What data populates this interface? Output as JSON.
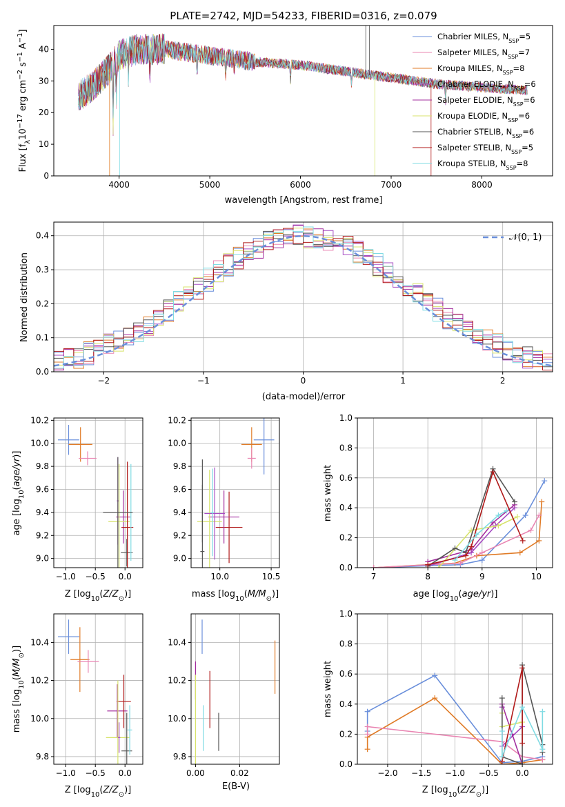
{
  "figure_title": "PLATE=2742, MJD=54233, FIBERID=0316, z=0.079",
  "colors": {
    "Chabrier MILES": "#6a8fdb",
    "Salpeter MILES": "#e985b2",
    "Kroupa MILES": "#e07b27",
    "Chabrier ELODIE": "#a64cc3",
    "Salpeter ELODIE": "#a32d9e",
    "Kroupa ELODIE": "#d7e36b",
    "Chabrier STELIB": "#555555",
    "Salpeter STELIB": "#b11a1a",
    "Kroupa STELIB": "#7fdbe3"
  },
  "chart_data": [
    {
      "id": "spectrum",
      "type": "line",
      "xlabel": "wavelength [Angstrom, rest frame]",
      "ylabel": "Flux [f_λ10^-17 erg cm^-2 s^-1 A^-1]",
      "xlim": [
        3280,
        8780
      ],
      "ylim": [
        0,
        47.5
      ],
      "xticks": [
        4000,
        5000,
        6000,
        7000,
        8000
      ],
      "yticks": [
        0,
        10,
        20,
        30,
        40
      ],
      "grid": false,
      "legend_position": "top-right",
      "legend": [
        {
          "model": "Chabrier MILES",
          "n": 5
        },
        {
          "model": "Salpeter MILES",
          "n": 7
        },
        {
          "model": "Kroupa MILES",
          "n": 8
        },
        {
          "model": "Chabrier ELODIE",
          "n": 6
        },
        {
          "model": "Salpeter ELODIE",
          "n": 6
        },
        {
          "model": "Kroupa ELODIE",
          "n": 6
        },
        {
          "model": "Chabrier STELIB",
          "n": 6
        },
        {
          "model": "Salpeter STELIB",
          "n": 5
        },
        {
          "model": "Kroupa STELIB",
          "n": 8
        }
      ],
      "x_range": [
        3550,
        8500
      ],
      "continuum": [
        [
          3550,
          25
        ],
        [
          3700,
          28
        ],
        [
          3900,
          34
        ],
        [
          4000,
          38
        ],
        [
          4200,
          40
        ],
        [
          4500,
          40
        ],
        [
          5000,
          38
        ],
        [
          5500,
          36
        ],
        [
          6000,
          35
        ],
        [
          6500,
          33
        ],
        [
          7000,
          31
        ],
        [
          7500,
          29
        ],
        [
          8000,
          28
        ],
        [
          8500,
          27
        ]
      ],
      "dips": [
        [
          3934,
          18
        ],
        [
          3969,
          12
        ],
        [
          4102,
          6
        ],
        [
          4340,
          8
        ],
        [
          4861,
          6
        ],
        [
          5175,
          5
        ],
        [
          5270,
          3
        ],
        [
          5890,
          5
        ],
        [
          6563,
          4
        ],
        [
          7600,
          5
        ]
      ],
      "spikes": [
        {
          "model": "Chabrier STELIB",
          "x": 6720,
          "y": 47.5
        },
        {
          "model": "Chabrier STELIB",
          "x": 6760,
          "y": 47.5
        },
        {
          "model": "Kroupa ELODIE",
          "x": 6820,
          "y": 0
        },
        {
          "model": "Kroupa MILES",
          "x": 3895,
          "y": 0
        },
        {
          "model": "Kroupa STELIB",
          "x": 4005,
          "y": 0
        },
        {
          "model": "Salpeter STELIB",
          "x": 7440,
          "y": 0
        }
      ]
    },
    {
      "id": "residuals",
      "type": "line",
      "xlabel": "(data-model)/error",
      "ylabel": "Normed distribution",
      "xlim": [
        -2.5,
        2.5
      ],
      "ylim": [
        0,
        0.44
      ],
      "xticks": [
        -2,
        -1,
        0,
        1,
        2
      ],
      "yticks": [
        0.0,
        0.1,
        0.2,
        0.3,
        0.4
      ],
      "grid": true,
      "legend_position": "top-right",
      "legend_label": "𝒩(0, 1)",
      "gaussian": {
        "mean": 0,
        "sigma": 1
      },
      "bins": 50
    },
    {
      "id": "z-vs-age",
      "type": "scatter",
      "xlabel": "Z [log10(Z/Z⊙)]",
      "ylabel": "age  [log10(age/yr)]",
      "xlim": [
        -1.2,
        0.3
      ],
      "ylim": [
        8.92,
        10.22
      ],
      "xticks": [
        -1.0,
        -0.5,
        0.0
      ],
      "yticks": [
        9.0,
        9.2,
        9.4,
        9.6,
        9.8,
        10.0,
        10.2
      ],
      "grid": true,
      "points": [
        {
          "model": "Chabrier MILES",
          "x": -0.95,
          "y": 10.03,
          "xerr": 0.18,
          "yerr": 0.13
        },
        {
          "model": "Kroupa MILES",
          "x": -0.75,
          "y": 9.99,
          "xerr": 0.2,
          "yerr": 0.15
        },
        {
          "model": "Salpeter MILES",
          "x": -0.63,
          "y": 9.87,
          "xerr": 0.15,
          "yerr": 0.06
        },
        {
          "model": "Chabrier ELODIE",
          "x": -0.12,
          "y": 9.5,
          "xerr": 0.02,
          "yerr": 0.38
        },
        {
          "model": "Salpeter ELODIE",
          "x": -0.03,
          "y": 9.36,
          "xerr": 0.12,
          "yerr": 0.23
        },
        {
          "model": "Kroupa ELODIE",
          "x": -0.1,
          "y": 9.32,
          "xerr": 0.18,
          "yerr": 0.5
        },
        {
          "model": "Chabrier STELIB",
          "x": 0.03,
          "y": 9.05,
          "xerr": 0.1,
          "yerr": 0.12
        },
        {
          "model": "Salpeter STELIB",
          "x": 0.04,
          "y": 9.27,
          "xerr": 0.1,
          "yerr": 0.57
        },
        {
          "model": "Kroupa STELIB",
          "x": 0.1,
          "y": 9.4,
          "xerr": 0.02,
          "yerr": 0.42
        },
        {
          "model": "Chabrier STELIB",
          "x": -0.12,
          "y": 9.4,
          "xerr": 0.25,
          "yerr": 0.48
        }
      ]
    },
    {
      "id": "mass-vs-age",
      "type": "scatter",
      "xlabel": "mass [log10(M/M⊙)]",
      "ylabel": "",
      "xlim": [
        9.72,
        10.58
      ],
      "ylim": [
        8.92,
        10.22
      ],
      "xticks": [
        10.0,
        10.5
      ],
      "yticks": [
        9.0,
        9.2,
        9.4,
        9.6,
        9.8,
        10.0,
        10.2
      ],
      "grid": true,
      "points": [
        {
          "model": "Chabrier MILES",
          "x": 10.43,
          "y": 10.03,
          "xerr": 0.1,
          "yerr": 0.3
        },
        {
          "model": "Kroupa MILES",
          "x": 10.31,
          "y": 9.99,
          "xerr": 0.1,
          "yerr": 0.15
        },
        {
          "model": "Salpeter MILES",
          "x": 10.31,
          "y": 9.87,
          "xerr": 0.04,
          "yerr": 0.09
        },
        {
          "model": "Salpeter STELIB",
          "x": 10.09,
          "y": 9.27,
          "xerr": 0.13,
          "yerr": 0.31
        },
        {
          "model": "Salpeter ELODIE",
          "x": 10.04,
          "y": 9.36,
          "xerr": 0.15,
          "yerr": 0.23
        },
        {
          "model": "Kroupa ELODIE",
          "x": 9.9,
          "y": 9.32,
          "xerr": 0.12,
          "yerr": 0.45
        },
        {
          "model": "Chabrier ELODIE",
          "x": 9.95,
          "y": 9.39,
          "xerr": 0.1,
          "yerr": 0.4
        },
        {
          "model": "Kroupa STELIB",
          "x": 9.93,
          "y": 9.4,
          "xerr": 0.02,
          "yerr": 0.38
        },
        {
          "model": "Chabrier STELIB",
          "x": 9.83,
          "y": 9.06,
          "xerr": 0.02,
          "yerr": 0.8
        },
        {
          "model": "Chabrier STELIB",
          "x": 9.83,
          "y": 9.39,
          "xerr": 0.0,
          "yerr": 0.25
        }
      ]
    },
    {
      "id": "age-vs-mass-weight",
      "type": "line",
      "xlabel": "age  [log10(age/yr)]",
      "ylabel": "mass weight",
      "xlim": [
        6.7,
        10.3
      ],
      "ylim": [
        0.0,
        1.0
      ],
      "xticks": [
        7,
        8,
        9,
        10
      ],
      "yticks": [
        0.0,
        0.2,
        0.4,
        0.6,
        0.8,
        1.0
      ],
      "grid": true,
      "series": [
        {
          "model": "Chabrier MILES",
          "x": [
            7.0,
            8.6,
            9.0,
            9.8,
            10.15
          ],
          "y": [
            0.0,
            0.02,
            0.05,
            0.35,
            0.58
          ]
        },
        {
          "model": "Kroupa MILES",
          "x": [
            7.0,
            8.5,
            8.9,
            9.7,
            10.05,
            10.1
          ],
          "y": [
            0.0,
            0.03,
            0.08,
            0.1,
            0.18,
            0.44
          ]
        },
        {
          "model": "Salpeter MILES",
          "x": [
            7.0,
            8.6,
            9.0,
            9.9,
            10.05
          ],
          "y": [
            0.0,
            0.03,
            0.1,
            0.25,
            0.35
          ]
        },
        {
          "model": "Chabrier ELODIE",
          "x": [
            8.0,
            8.8,
            9.25,
            9.6
          ],
          "y": [
            0.01,
            0.1,
            0.28,
            0.4
          ]
        },
        {
          "model": "Salpeter ELODIE",
          "x": [
            8.0,
            8.8,
            9.2,
            9.6
          ],
          "y": [
            0.04,
            0.12,
            0.3,
            0.42
          ]
        },
        {
          "model": "Kroupa ELODIE",
          "x": [
            8.2,
            8.8,
            9.3,
            9.65
          ],
          "y": [
            0.0,
            0.25,
            0.28,
            0.34
          ]
        },
        {
          "model": "Chabrier STELIB",
          "x": [
            8.0,
            8.5,
            8.7,
            9.2,
            9.6
          ],
          "y": [
            0.01,
            0.13,
            0.1,
            0.66,
            0.44
          ]
        },
        {
          "model": "Salpeter STELIB",
          "x": [
            8.0,
            8.7,
            8.8,
            9.2,
            9.75
          ],
          "y": [
            0.02,
            0.08,
            0.14,
            0.64,
            0.18
          ]
        },
        {
          "model": "Kroupa STELIB",
          "x": [
            8.5,
            8.9,
            9.3,
            9.45
          ],
          "y": [
            0.05,
            0.22,
            0.35,
            0.38
          ]
        }
      ]
    },
    {
      "id": "z-vs-mass",
      "type": "scatter",
      "xlabel": "Z [log10(Z/Z⊙)]",
      "ylabel": "mass [log10(M/M⊙)]",
      "xlim": [
        -1.2,
        0.3
      ],
      "ylim": [
        9.76,
        10.55
      ],
      "xticks": [
        -1.0,
        -0.5,
        0.0
      ],
      "yticks": [
        9.8,
        10.0,
        10.2,
        10.4
      ],
      "grid": true,
      "points": [
        {
          "model": "Chabrier MILES",
          "x": -0.95,
          "y": 10.43,
          "xerr": 0.18,
          "yerr": 0.09
        },
        {
          "model": "Kroupa MILES",
          "x": -0.76,
          "y": 10.31,
          "xerr": 0.16,
          "yerr": 0.17
        },
        {
          "model": "Salpeter MILES",
          "x": -0.62,
          "y": 10.3,
          "xerr": 0.18,
          "yerr": 0.06
        },
        {
          "model": "Salpeter ELODIE",
          "x": -0.13,
          "y": 10.04,
          "xerr": 0.17,
          "yerr": 0.14
        },
        {
          "model": "Salpeter STELIB",
          "x": -0.02,
          "y": 10.09,
          "xerr": 0.12,
          "yerr": 0.14
        },
        {
          "model": "Kroupa ELODIE",
          "x": -0.12,
          "y": 9.9,
          "xerr": 0.2,
          "yerr": 0.3
        },
        {
          "model": "Chabrier ELODIE",
          "x": -0.1,
          "y": 9.9,
          "xerr": 0.02,
          "yerr": 0.08
        },
        {
          "model": "Chabrier STELIB",
          "x": 0.03,
          "y": 9.83,
          "xerr": 0.09,
          "yerr": 0.2
        },
        {
          "model": "Kroupa STELIB",
          "x": 0.08,
          "y": 9.94,
          "xerr": 0.04,
          "yerr": 0.13
        }
      ]
    },
    {
      "id": "ebv-vs-mass",
      "type": "scatter",
      "xlabel": "E(B-V)",
      "ylabel": "",
      "xlim": [
        -0.002,
        0.038
      ],
      "ylim": [
        9.76,
        10.55
      ],
      "xticks": [
        0.0,
        0.02
      ],
      "yticks": [
        9.8,
        10.0,
        10.2,
        10.4
      ],
      "grid": true,
      "points": [
        {
          "model": "Chabrier MILES",
          "x": 0.003,
          "y": 10.43,
          "yerr": 0.09
        },
        {
          "model": "Salpeter ELODIE",
          "x": 0.0,
          "y": 10.2,
          "yerr": 0.1
        },
        {
          "model": "Kroupa ELODIE",
          "x": 0.0,
          "y": 9.95,
          "yerr": 0.28
        },
        {
          "model": "Kroupa STELIB",
          "x": 0.0035,
          "y": 9.95,
          "yerr": 0.12
        },
        {
          "model": "Salpeter STELIB",
          "x": 0.0065,
          "y": 10.1,
          "yerr": 0.15
        },
        {
          "model": "Chabrier STELIB",
          "x": 0.0105,
          "y": 9.93,
          "yerr": 0.1
        },
        {
          "model": "Kroupa MILES",
          "x": 0.036,
          "y": 10.27,
          "yerr": 0.14
        }
      ]
    },
    {
      "id": "z-vs-mass-weight",
      "type": "line",
      "xlabel": "Z [log10(Z/Z⊙)]",
      "ylabel": "mass weight",
      "xlim": [
        -2.45,
        0.45
      ],
      "ylim": [
        0.0,
        1.0
      ],
      "xticks": [
        -2.0,
        -1.5,
        -1.0,
        -0.5,
        0.0
      ],
      "yticks": [
        0.0,
        0.2,
        0.4,
        0.6,
        0.8,
        1.0
      ],
      "grid": true,
      "series": [
        {
          "model": "Chabrier MILES",
          "x": [
            -2.3,
            -2.3,
            -1.3,
            -0.3,
            0.0,
            0.3
          ],
          "y": [
            0.22,
            0.35,
            0.59,
            0.01,
            0.02,
            0.05
          ]
        },
        {
          "model": "Kroupa MILES",
          "x": [
            -2.3,
            -2.3,
            -1.3,
            -0.3,
            0.0,
            0.3
          ],
          "y": [
            0.1,
            0.18,
            0.44,
            0.0,
            0.01,
            0.03
          ]
        },
        {
          "model": "Salpeter MILES",
          "x": [
            -2.3,
            -2.3,
            -0.3,
            0.0,
            0.3
          ],
          "y": [
            0.2,
            0.25,
            0.15,
            0.05,
            0.03
          ]
        },
        {
          "model": "Chabrier ELODIE",
          "x": [
            -0.3,
            -0.3,
            0.0
          ],
          "y": [
            0.38,
            0.12,
            0.25
          ]
        },
        {
          "model": "Salpeter ELODIE",
          "x": [
            -0.3,
            -0.15,
            0.0
          ],
          "y": [
            0.4,
            0.2,
            0.0
          ]
        },
        {
          "model": "Kroupa ELODIE",
          "x": [
            -0.3,
            -0.3,
            0.0
          ],
          "y": [
            0.34,
            0.25,
            0.28
          ]
        },
        {
          "model": "Chabrier STELIB",
          "x": [
            -0.3,
            -0.3,
            0.0,
            0.0,
            0.3,
            0.3
          ],
          "y": [
            0.44,
            0.05,
            0.0,
            0.66,
            0.13,
            0.08
          ]
        },
        {
          "model": "Salpeter STELIB",
          "x": [
            -0.3,
            0.0,
            0.0
          ],
          "y": [
            0.02,
            0.64,
            0.14
          ]
        },
        {
          "model": "Kroupa STELIB",
          "x": [
            -0.3,
            -0.3,
            0.0,
            0.3,
            0.3
          ],
          "y": [
            0.22,
            0.05,
            0.38,
            0.1,
            0.35
          ]
        }
      ]
    }
  ]
}
